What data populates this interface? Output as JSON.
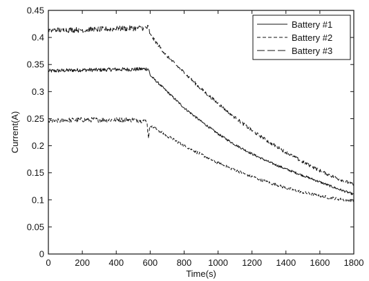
{
  "chart_data": {
    "type": "line",
    "title": "",
    "xlabel": "Time(s)",
    "ylabel": "Current(A)",
    "xlim": [
      0,
      1800
    ],
    "ylim": [
      0,
      0.45
    ],
    "xticks": [
      0,
      200,
      400,
      600,
      800,
      1000,
      1200,
      1400,
      1600,
      1800
    ],
    "yticks": [
      0,
      0.05,
      0.1,
      0.15,
      0.2,
      0.25,
      0.3,
      0.35,
      0.4,
      0.45
    ],
    "xtick_labels": [
      "0",
      "200",
      "400",
      "600",
      "800",
      "1000",
      "1200",
      "1400",
      "1600",
      "1800"
    ],
    "ytick_labels": [
      "0",
      "0.05",
      "0.1",
      "0.15",
      "0.2",
      "0.25",
      "0.3",
      "0.35",
      "0.4",
      "0.45"
    ],
    "grid": false,
    "legend_position": "top-right",
    "series": [
      {
        "name": "Battery #1",
        "style": "solid",
        "x": [
          0,
          100,
          200,
          300,
          400,
          500,
          580,
          590,
          600,
          650,
          700,
          800,
          900,
          1000,
          1100,
          1200,
          1300,
          1400,
          1500,
          1600,
          1700,
          1800
        ],
        "y": [
          0.338,
          0.339,
          0.34,
          0.34,
          0.341,
          0.341,
          0.342,
          0.342,
          0.33,
          0.315,
          0.3,
          0.27,
          0.245,
          0.222,
          0.202,
          0.185,
          0.17,
          0.157,
          0.145,
          0.133,
          0.121,
          0.11
        ]
      },
      {
        "name": "Battery #2",
        "style": "dashed",
        "x": [
          0,
          100,
          200,
          300,
          400,
          500,
          580,
          590,
          600,
          650,
          700,
          800,
          900,
          1000,
          1100,
          1200,
          1300,
          1400,
          1500,
          1600,
          1700,
          1800
        ],
        "y": [
          0.245,
          0.247,
          0.248,
          0.248,
          0.248,
          0.248,
          0.246,
          0.215,
          0.238,
          0.228,
          0.218,
          0.2,
          0.184,
          0.168,
          0.155,
          0.143,
          0.132,
          0.122,
          0.114,
          0.107,
          0.102,
          0.098
        ]
      },
      {
        "name": "Battery #3",
        "style": "long-dash",
        "x": [
          0,
          100,
          200,
          300,
          400,
          500,
          580,
          590,
          600,
          650,
          700,
          800,
          900,
          1000,
          1100,
          1200,
          1300,
          1400,
          1500,
          1600,
          1700,
          1800
        ],
        "y": [
          0.413,
          0.414,
          0.414,
          0.415,
          0.416,
          0.417,
          0.418,
          0.419,
          0.405,
          0.385,
          0.365,
          0.335,
          0.305,
          0.278,
          0.252,
          0.228,
          0.207,
          0.188,
          0.17,
          0.154,
          0.14,
          0.128
        ]
      }
    ]
  },
  "colors": {
    "background": "#ffffff",
    "ink": "#111111"
  }
}
